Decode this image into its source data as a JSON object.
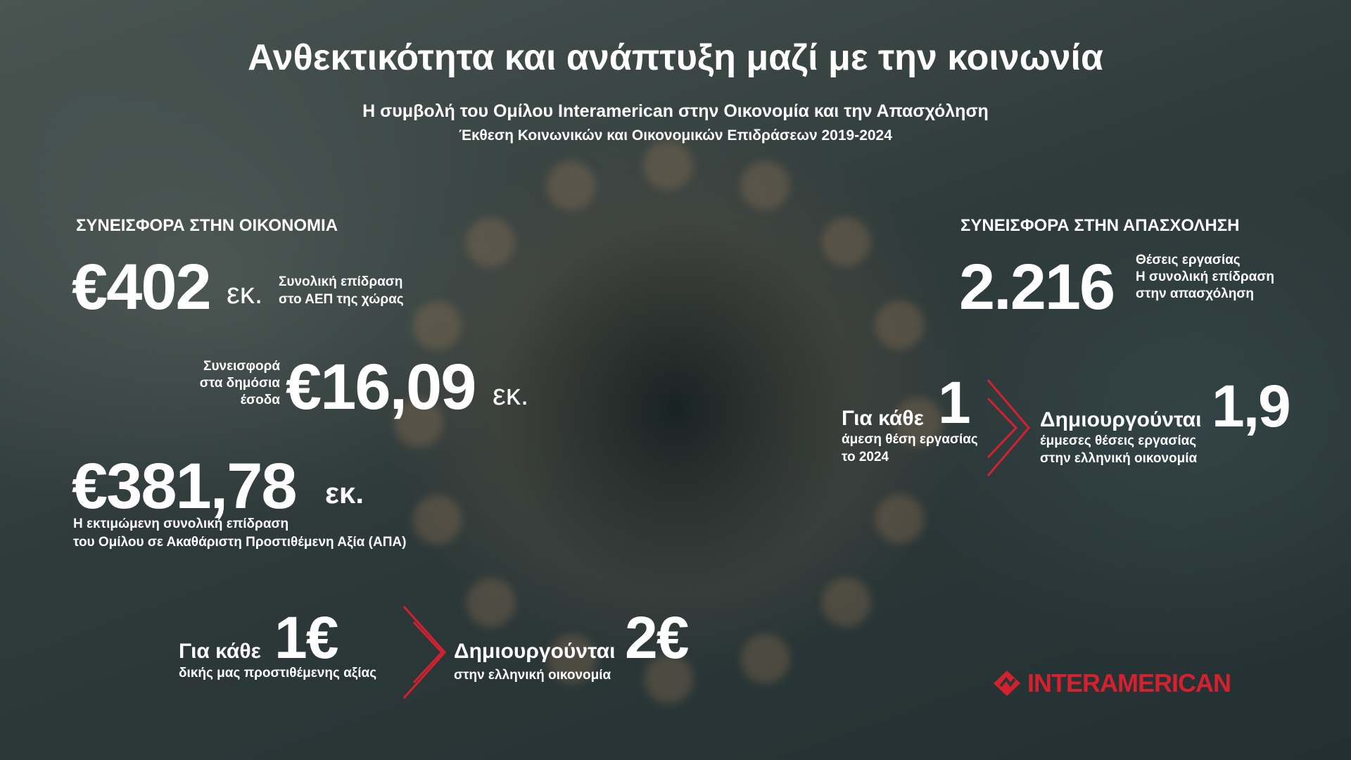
{
  "header": {
    "title": "Ανθεκτικότητα  και ανάπτυξη μαζί με την κοινωνία",
    "subtitle": "Η συμβολή του Ομίλου Interamerican στην Οικονομία και την Απασχόληση",
    "report": "Έκθεση Κοινωνικών και Οικονομικών Επιδράσεων 2019-2024"
  },
  "economy": {
    "heading": "ΣΥΝΕΙΣΦΟΡΑ ΣΤΗΝ ΟΙΚΟΝΟΜΙΑ",
    "gdp": {
      "value": "€402",
      "unit": "εκ.",
      "desc": [
        "Συνολική επίδραση",
        "στο ΑΕΠ της χώρας"
      ]
    },
    "revenue": {
      "label": [
        "Συνεισφορά",
        "στα δημόσια",
        "έσοδα"
      ],
      "value": "€16,09",
      "unit": "εκ."
    },
    "gva": {
      "value": "€381,78",
      "unit": "εκ.",
      "desc": [
        "Η εκτιμώμενη συνολική επίδραση",
        "του Ομίλου σε Ακαθάριστη Προστιθέμενη Αξία (ΑΠΑ)"
      ]
    },
    "multiplier": {
      "for_each": "Για κάθε",
      "value": "1€",
      "desc": "δικής μας προστιθέμενης αξίας",
      "creates": "Δημιουργούνται",
      "result": "2€",
      "result_desc": "στην ελληνική οικονομία"
    }
  },
  "employment": {
    "heading": "ΣΥΝΕΙΣΦΟΡΑ ΣΤΗΝ ΑΠΑΣΧΟΛΗΣΗ",
    "jobs": {
      "value": "2.216",
      "desc": [
        "Θέσεις εργασίας",
        "Η συνολική επίδραση",
        "στην απασχόληση"
      ]
    },
    "multiplier": {
      "for_each": "Για κάθε",
      "value": "1",
      "desc": [
        "άμεση θέση εργασίας",
        "το 2024"
      ],
      "creates": "Δημιουργούνται",
      "result": "1,9",
      "result_desc": [
        "έμμεσες θέσεις εργασίας",
        "στην ελληνική οικονομία"
      ]
    }
  },
  "logo": {
    "text": "INTERAMERICAN",
    "icon": "interamerican-logo-icon"
  },
  "colors": {
    "accent": "#d4202f",
    "text": "#ffffff"
  }
}
